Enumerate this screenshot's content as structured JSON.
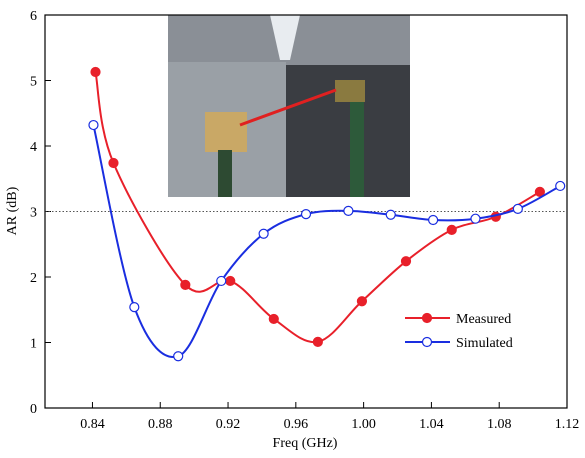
{
  "chart_data": {
    "type": "line",
    "x_label": "Freq (GHz)",
    "y_label": "AR (dB)",
    "xlim": [
      0.812,
      1.12
    ],
    "ylim": [
      0,
      6
    ],
    "xticks": [
      0.84,
      0.88,
      0.92,
      0.96,
      {
        "value": 1.0,
        "label": "1.00"
      },
      1.04,
      1.08,
      1.12
    ],
    "yticks": [
      0,
      1,
      2,
      3,
      4,
      5,
      6
    ],
    "hline": 3,
    "series": [
      {
        "name": "Measured",
        "color": "#e8202a",
        "marker": "filled",
        "x": [
          0.8418,
          0.8524,
          0.8948,
          0.9213,
          0.947,
          0.973,
          0.999,
          1.025,
          1.052,
          1.078,
          1.104
        ],
        "values": [
          5.13,
          3.74,
          1.88,
          1.94,
          1.36,
          1.01,
          1.63,
          2.24,
          2.72,
          2.92,
          3.3
        ]
      },
      {
        "name": "Simulated",
        "color": "#1a2ee0",
        "marker": "open",
        "x": [
          0.8406,
          0.8647,
          0.8906,
          0.916,
          0.941,
          0.966,
          0.991,
          1.016,
          1.041,
          1.066,
          1.091,
          1.116
        ],
        "values": [
          4.32,
          1.54,
          0.79,
          1.94,
          2.66,
          2.96,
          3.01,
          2.95,
          2.87,
          2.89,
          3.04,
          3.39
        ]
      }
    ]
  }
}
